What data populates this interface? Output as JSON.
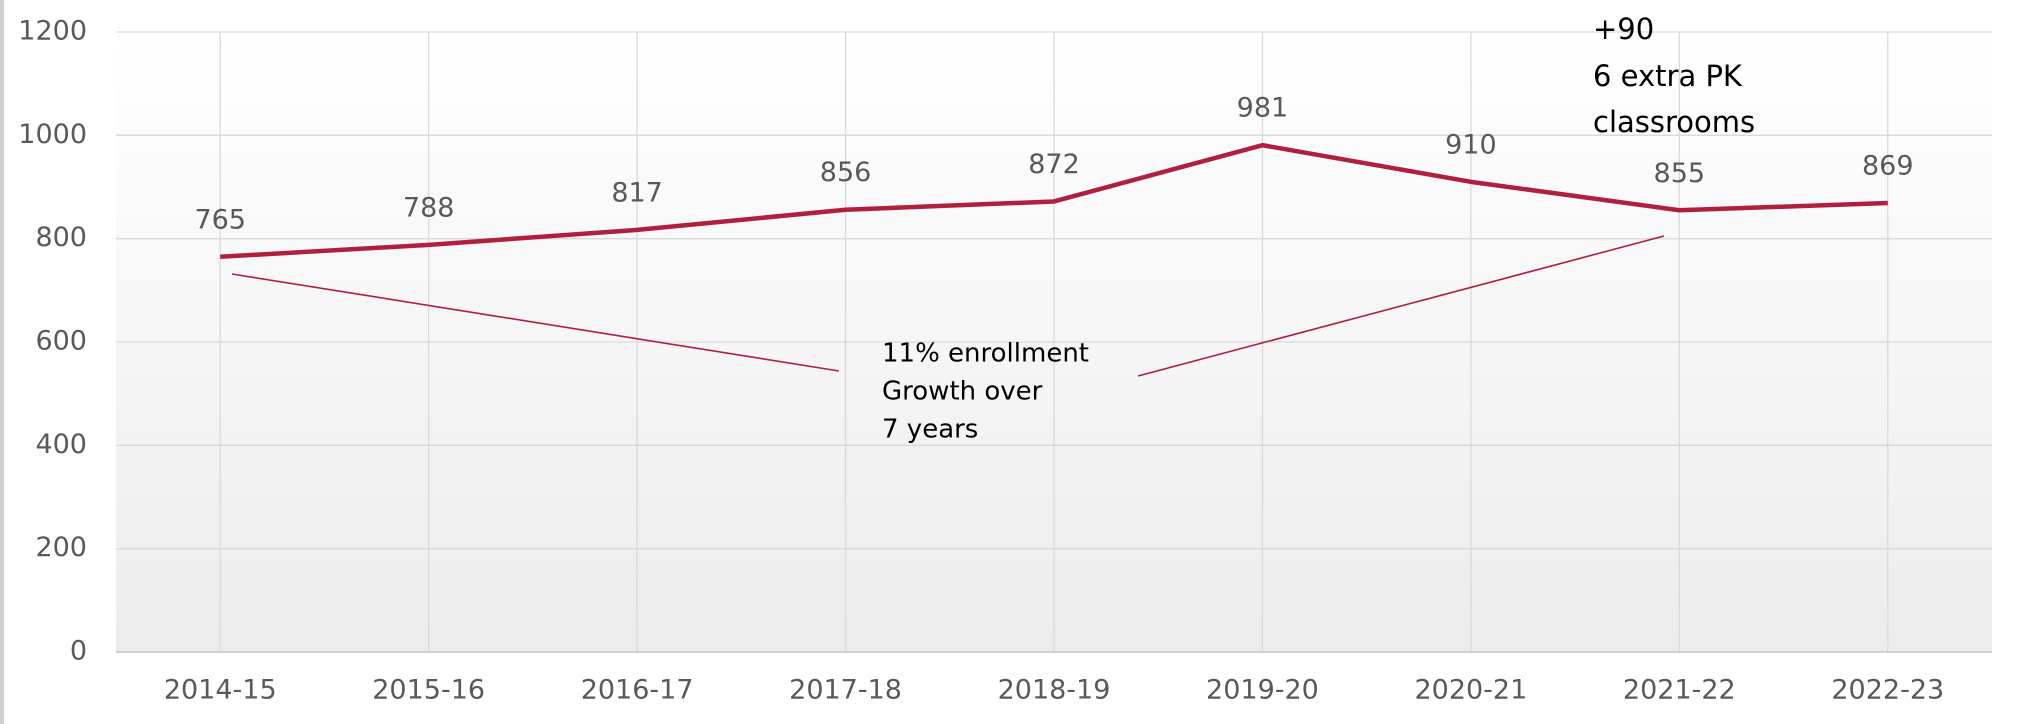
{
  "chart_data": {
    "type": "line",
    "categories": [
      "2014-15",
      "2015-16",
      "2016-17",
      "2017-18",
      "2018-19",
      "2019-20",
      "2020-21",
      "2021-22",
      "2022-23"
    ],
    "values": [
      765,
      788,
      817,
      856,
      872,
      981,
      910,
      855,
      869
    ],
    "color": "#b0203e",
    "ylim": [
      0,
      1200
    ],
    "yticks": [
      0,
      200,
      400,
      600,
      800,
      1000,
      1200
    ],
    "grid": true,
    "annotations": [
      [
        "+90",
        "6 extra PK",
        "classrooms"
      ],
      [
        "11% enrollment",
        "Growth over",
        "7 years"
      ]
    ]
  }
}
